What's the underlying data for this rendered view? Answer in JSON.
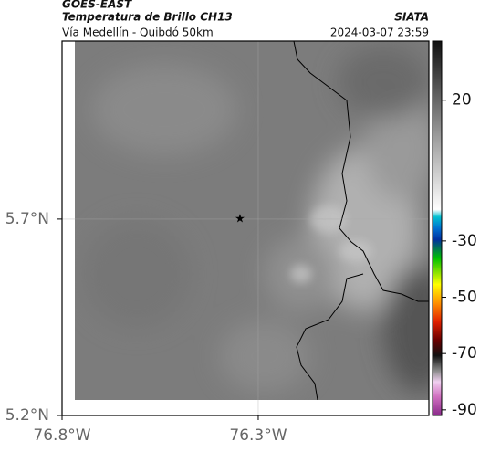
{
  "chart_data": {
    "type": "map",
    "title": "GOES-EAST",
    "subtitle": "Temperatura de Brillo CH13",
    "source": "SIATA",
    "region": "Vía Medellín - Quibdó 50km",
    "datetime": "2024-03-07 23:59",
    "xlim": [
      -76.8,
      -75.865
    ],
    "ylim": [
      5.2,
      6.153
    ],
    "xticks": [
      {
        "value": -76.8,
        "label": "76.8°W"
      },
      {
        "value": -76.3,
        "label": "76.3°W"
      }
    ],
    "yticks": [
      {
        "value": 5.2,
        "label": "5.2°N"
      },
      {
        "value": 5.7,
        "label": "5.7°N"
      }
    ],
    "grid": true,
    "colorbar": {
      "lim": [
        -92,
        41
      ],
      "ticks": [
        20,
        -30,
        -50,
        -70,
        -90
      ]
    }
  }
}
